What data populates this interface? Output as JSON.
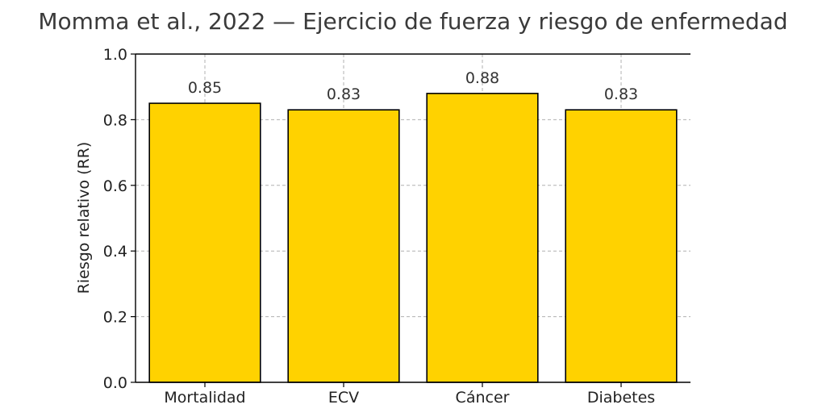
{
  "chart_data": {
    "type": "bar",
    "title": "Momma et al., 2022 — Ejercicio de fuerza y riesgo de enfermedad",
    "xlabel": "",
    "ylabel": "Riesgo relativo (RR)",
    "categories": [
      "Mortalidad",
      "ECV",
      "Cáncer",
      "Diabetes"
    ],
    "values": [
      0.85,
      0.83,
      0.88,
      0.83
    ],
    "data_labels": [
      "0.85",
      "0.83",
      "0.88",
      "0.83"
    ],
    "ylim": [
      0,
      1.0
    ],
    "yticks": [
      "0.0",
      "0.2",
      "0.4",
      "0.6",
      "0.8",
      "1.0"
    ],
    "grid": true,
    "bar_color": "#FFD200",
    "edge_color": "#000000"
  }
}
